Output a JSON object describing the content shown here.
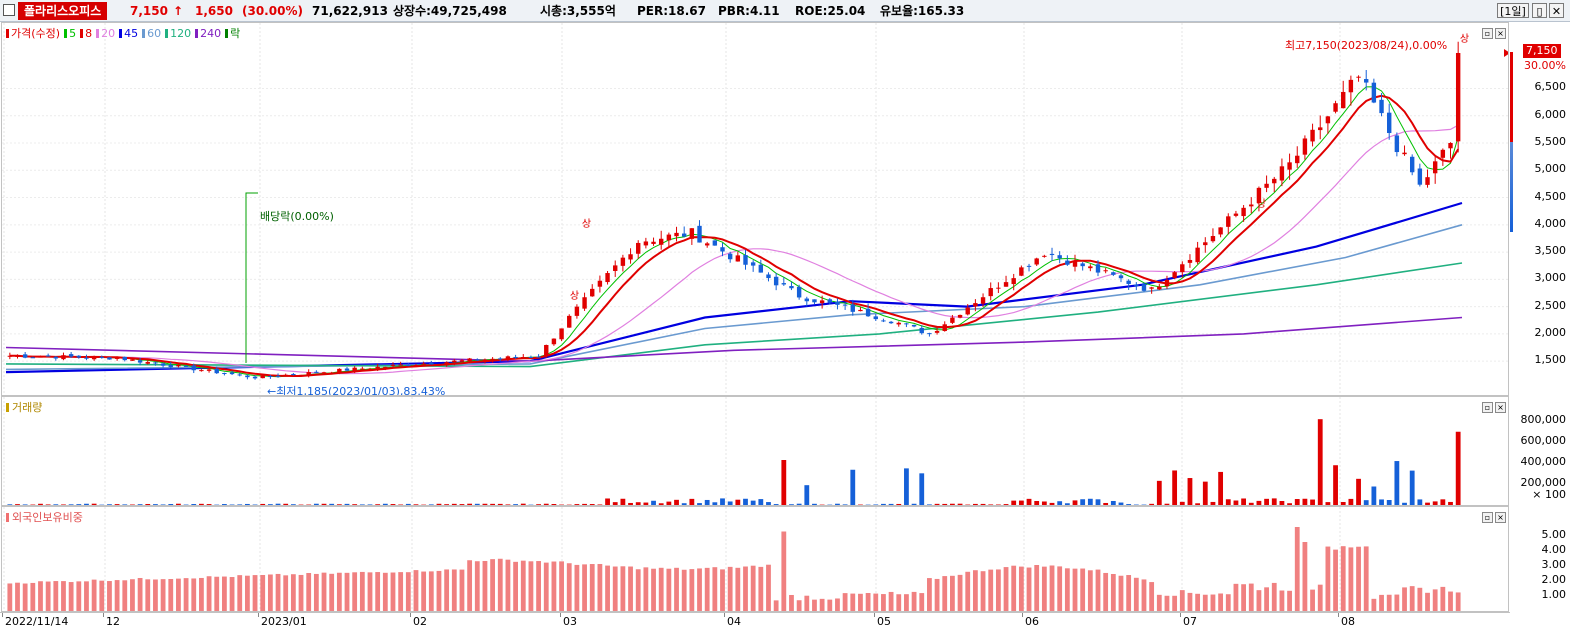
{
  "header": {
    "stock_name": "폴라리스오피스",
    "price": "7,150",
    "change_arrow": "↑",
    "change": "1,650",
    "change_rate": "(30.00%)",
    "volume": "71,622,913",
    "listed_shares": "상장수:49,725,498",
    "market_cap": "시총:3,555억",
    "per": "PER:18.67",
    "pbr": "PBR:4.11",
    "roe": "ROE:25.04",
    "retention": "유보율:165.33",
    "period": "[1일]",
    "restore_btn": "▯",
    "close_btn": "✕",
    "colors": {
      "up": "#e00000",
      "down": "#1560d8",
      "name_bg": "#d60000"
    }
  },
  "price_panel": {
    "legend": [
      {
        "text": "가격(수정)",
        "color": "#e00000"
      },
      {
        "text": "5",
        "color": "#00c000"
      },
      {
        "text": "8",
        "color": "#e00000"
      },
      {
        "text": "20",
        "color": "#e080e0"
      },
      {
        "text": "45",
        "color": "#0000e0"
      },
      {
        "text": "60",
        "color": "#6a9ad0"
      },
      {
        "text": "120",
        "color": "#20b080"
      },
      {
        "text": "240",
        "color": "#8020c0"
      },
      {
        "text": "락",
        "color": "#008000"
      }
    ],
    "axis_ticks": [
      "6,500",
      "6,000",
      "5,500",
      "5,000",
      "4,500",
      "4,000",
      "3,500",
      "3,000",
      "2,500",
      "2,000",
      "1,500"
    ],
    "axis_unit": "30.00%",
    "current_price_tag": "7,150",
    "max_label": "최고7,150(2023/08/24),0.00%",
    "min_label": "←최저1,185(2023/01/03),83.43%",
    "dividend_label": "배당락(0.00%)",
    "limit_up_marks": [
      "상",
      "상",
      "상",
      "상"
    ]
  },
  "volume_panel": {
    "title": "거래량",
    "axis_ticks": [
      "800,000",
      "600,000",
      "400,000",
      "200,000"
    ],
    "axis_unit": "× 100"
  },
  "foreign_panel": {
    "title": "외국인보유비중",
    "axis_ticks": [
      "5.00",
      "4.00",
      "3.00",
      "2.00",
      "1.00"
    ]
  },
  "x_axis": {
    "labels": [
      "2022/11/14",
      "12",
      "2023/01",
      "02",
      "03",
      "04",
      "05",
      "06",
      "07",
      "08"
    ]
  },
  "chart_data": {
    "type": "candlestick",
    "period": "daily",
    "start_date": "2022/11/14",
    "end_date": "2023/08/24",
    "title": "폴라리스오피스",
    "y_range": [
      1185,
      7150
    ],
    "x_labels": [
      "2022/11/14",
      "12",
      "2023/01",
      "02",
      "03",
      "04",
      "05",
      "06",
      "07",
      "08"
    ],
    "close_anchors": [
      {
        "x": "2022/11/14",
        "y": 1600
      },
      {
        "x": "2022/12",
        "y": 1560
      },
      {
        "x": "2023/01/03",
        "y": 1200
      },
      {
        "x": "2023/02",
        "y": 1450
      },
      {
        "x": "2023/02/22",
        "y": 1600
      },
      {
        "x": "2023/03/03",
        "y": 2300
      },
      {
        "x": "2023/03/06",
        "y": 3700
      },
      {
        "x": "2023/03/20",
        "y": 3850
      },
      {
        "x": "2023/04",
        "y": 2700
      },
      {
        "x": "2023/05",
        "y": 2250
      },
      {
        "x": "2023/05/10",
        "y": 2000
      },
      {
        "x": "2023/06/10",
        "y": 3500
      },
      {
        "x": "2023/07",
        "y": 2800
      },
      {
        "x": "2023/07/12",
        "y": 4200
      },
      {
        "x": "2023/07/24",
        "y": 5100
      },
      {
        "x": "2023/08/02",
        "y": 6700
      },
      {
        "x": "2023/08/16",
        "y": 4700
      },
      {
        "x": "2023/08/23",
        "y": 5500
      },
      {
        "x": "2023/08/24",
        "y": 7150
      }
    ],
    "ma_lines": [
      {
        "name": "45",
        "color": "#0000e0",
        "points": [
          [
            0,
            1300
          ],
          [
            0.36,
            1500
          ],
          [
            0.48,
            2300
          ],
          [
            0.58,
            2600
          ],
          [
            0.66,
            2500
          ],
          [
            0.78,
            2900
          ],
          [
            0.9,
            3600
          ],
          [
            1,
            4400
          ]
        ]
      },
      {
        "name": "60",
        "color": "#6a9ad0",
        "points": [
          [
            0,
            1350
          ],
          [
            0.36,
            1450
          ],
          [
            0.48,
            2100
          ],
          [
            0.58,
            2350
          ],
          [
            0.7,
            2500
          ],
          [
            0.82,
            2900
          ],
          [
            0.92,
            3400
          ],
          [
            1,
            4000
          ]
        ]
      },
      {
        "name": "120",
        "color": "#20b080",
        "points": [
          [
            0,
            1450
          ],
          [
            0.36,
            1400
          ],
          [
            0.48,
            1800
          ],
          [
            0.6,
            2000
          ],
          [
            0.75,
            2400
          ],
          [
            0.9,
            2900
          ],
          [
            1,
            3300
          ]
        ]
      },
      {
        "name": "240",
        "color": "#8020c0",
        "points": [
          [
            0,
            1750
          ],
          [
            0.36,
            1500
          ],
          [
            0.5,
            1700
          ],
          [
            0.7,
            1850
          ],
          [
            0.85,
            2000
          ],
          [
            1,
            2300
          ]
        ]
      }
    ],
    "volume_max": 800000,
    "volume_peaks_x100": [
      {
        "x": "2023/03/06",
        "y": 430000
      },
      {
        "x": "2023/03/20",
        "y": 350000
      },
      {
        "x": "2023/06/12",
        "y": 330000
      },
      {
        "x": "2023/07/18",
        "y": 820000
      },
      {
        "x": "2023/07/20",
        "y": 380000
      },
      {
        "x": "2023/08/10",
        "y": 420000
      },
      {
        "x": "2023/08/24",
        "y": 700000
      }
    ],
    "foreign_ratio_range": [
      0.5,
      5.8
    ]
  }
}
